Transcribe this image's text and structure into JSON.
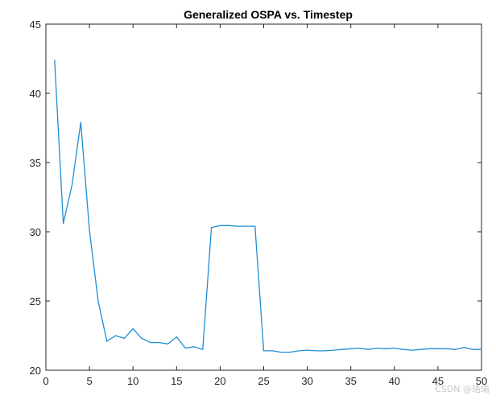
{
  "chart_data": {
    "type": "line",
    "title": "Generalized OSPA vs. Timestep",
    "xlabel": "",
    "ylabel": "",
    "xlim": [
      0,
      50
    ],
    "ylim": [
      20,
      45
    ],
    "xticks": [
      0,
      5,
      10,
      15,
      20,
      25,
      30,
      35,
      40,
      45,
      50
    ],
    "yticks": [
      20,
      25,
      30,
      35,
      40,
      45
    ],
    "grid": false,
    "series": [
      {
        "color": "#1f8dd6",
        "x": [
          1,
          2,
          3,
          4,
          5,
          6,
          7,
          8,
          9,
          10,
          11,
          12,
          13,
          14,
          15,
          16,
          17,
          18,
          19,
          20,
          21,
          22,
          23,
          24,
          25,
          26,
          27,
          28,
          29,
          30,
          31,
          32,
          33,
          34,
          35,
          36,
          37,
          38,
          39,
          40,
          41,
          42,
          43,
          44,
          45,
          46,
          47,
          48,
          49,
          50
        ],
        "values": [
          42.4,
          30.6,
          33.4,
          37.9,
          30.1,
          25.0,
          22.1,
          22.5,
          22.3,
          23.0,
          22.3,
          22.0,
          22.0,
          21.9,
          22.4,
          21.6,
          21.7,
          21.5,
          30.3,
          30.45,
          30.45,
          30.4,
          30.4,
          30.4,
          21.4,
          21.4,
          21.3,
          21.3,
          21.4,
          21.45,
          21.4,
          21.4,
          21.45,
          21.5,
          21.55,
          21.6,
          21.5,
          21.6,
          21.55,
          21.6,
          21.5,
          21.45,
          21.5,
          21.55,
          21.55,
          21.55,
          21.5,
          21.65,
          21.5,
          21.5
        ]
      }
    ]
  },
  "watermark": "CSDN @珞瑜"
}
